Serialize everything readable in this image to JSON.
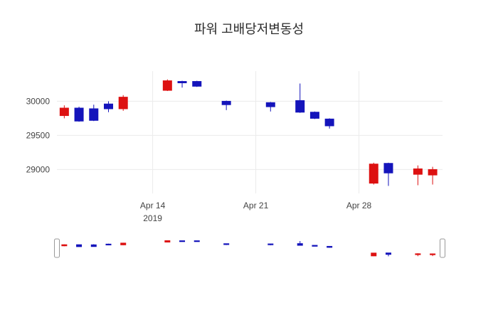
{
  "chart_data": {
    "type": "candlestick",
    "title": "파워 고배당저변동성",
    "y_ticks": [
      {
        "value": 30000,
        "label": "30000"
      },
      {
        "value": 29500,
        "label": "29500"
      },
      {
        "value": 29000,
        "label": "29000"
      }
    ],
    "x_ticks": [
      {
        "date": "2019-04-14",
        "label": "Apr 14",
        "sublabel": "2019"
      },
      {
        "date": "2019-04-21",
        "label": "Apr 21",
        "sublabel": ""
      },
      {
        "date": "2019-04-28",
        "label": "Apr 28",
        "sublabel": ""
      }
    ],
    "y_range": [
      28650,
      30400
    ],
    "x_range": [
      "2019-04-07",
      "2019-05-04"
    ],
    "grid": true,
    "legend": false,
    "rangeslider": {
      "visible": true
    },
    "colors": {
      "increasing": "#dd1111",
      "decreasing": "#1414bb",
      "grid": "#ebebeb",
      "tick": "#444444",
      "handle_border": "#999999",
      "background": "#ffffff"
    },
    "series": [
      {
        "date": "2019-04-08",
        "open": 29790,
        "high": 29940,
        "low": 29750,
        "close": 29900
      },
      {
        "date": "2019-04-09",
        "open": 29900,
        "high": 29920,
        "low": 29700,
        "close": 29710
      },
      {
        "date": "2019-04-10",
        "open": 29890,
        "high": 29950,
        "low": 29710,
        "close": 29720
      },
      {
        "date": "2019-04-11",
        "open": 29960,
        "high": 30000,
        "low": 29840,
        "close": 29890
      },
      {
        "date": "2019-04-12",
        "open": 29890,
        "high": 30090,
        "low": 29860,
        "close": 30060
      },
      {
        "date": "2019-04-15",
        "open": 30160,
        "high": 30320,
        "low": 30150,
        "close": 30300
      },
      {
        "date": "2019-04-16",
        "open": 30290,
        "high": 30300,
        "low": 30200,
        "close": 30270
      },
      {
        "date": "2019-04-17",
        "open": 30290,
        "high": 30300,
        "low": 30210,
        "close": 30220
      },
      {
        "date": "2019-04-19",
        "open": 30000,
        "high": 30010,
        "low": 29870,
        "close": 29950
      },
      {
        "date": "2019-04-22",
        "open": 29980,
        "high": 29990,
        "low": 29850,
        "close": 29920
      },
      {
        "date": "2019-04-24",
        "open": 30010,
        "high": 30260,
        "low": 29830,
        "close": 29840
      },
      {
        "date": "2019-04-25",
        "open": 29840,
        "high": 29850,
        "low": 29740,
        "close": 29750
      },
      {
        "date": "2019-04-26",
        "open": 29740,
        "high": 29750,
        "low": 29600,
        "close": 29640
      },
      {
        "date": "2019-04-29",
        "open": 28800,
        "high": 29100,
        "low": 28780,
        "close": 29080
      },
      {
        "date": "2019-04-30",
        "open": 29090,
        "high": 29100,
        "low": 28760,
        "close": 28950
      },
      {
        "date": "2019-05-02",
        "open": 28930,
        "high": 29060,
        "low": 28770,
        "close": 29010
      },
      {
        "date": "2019-05-03",
        "open": 28920,
        "high": 29040,
        "low": 28780,
        "close": 29000
      }
    ]
  }
}
